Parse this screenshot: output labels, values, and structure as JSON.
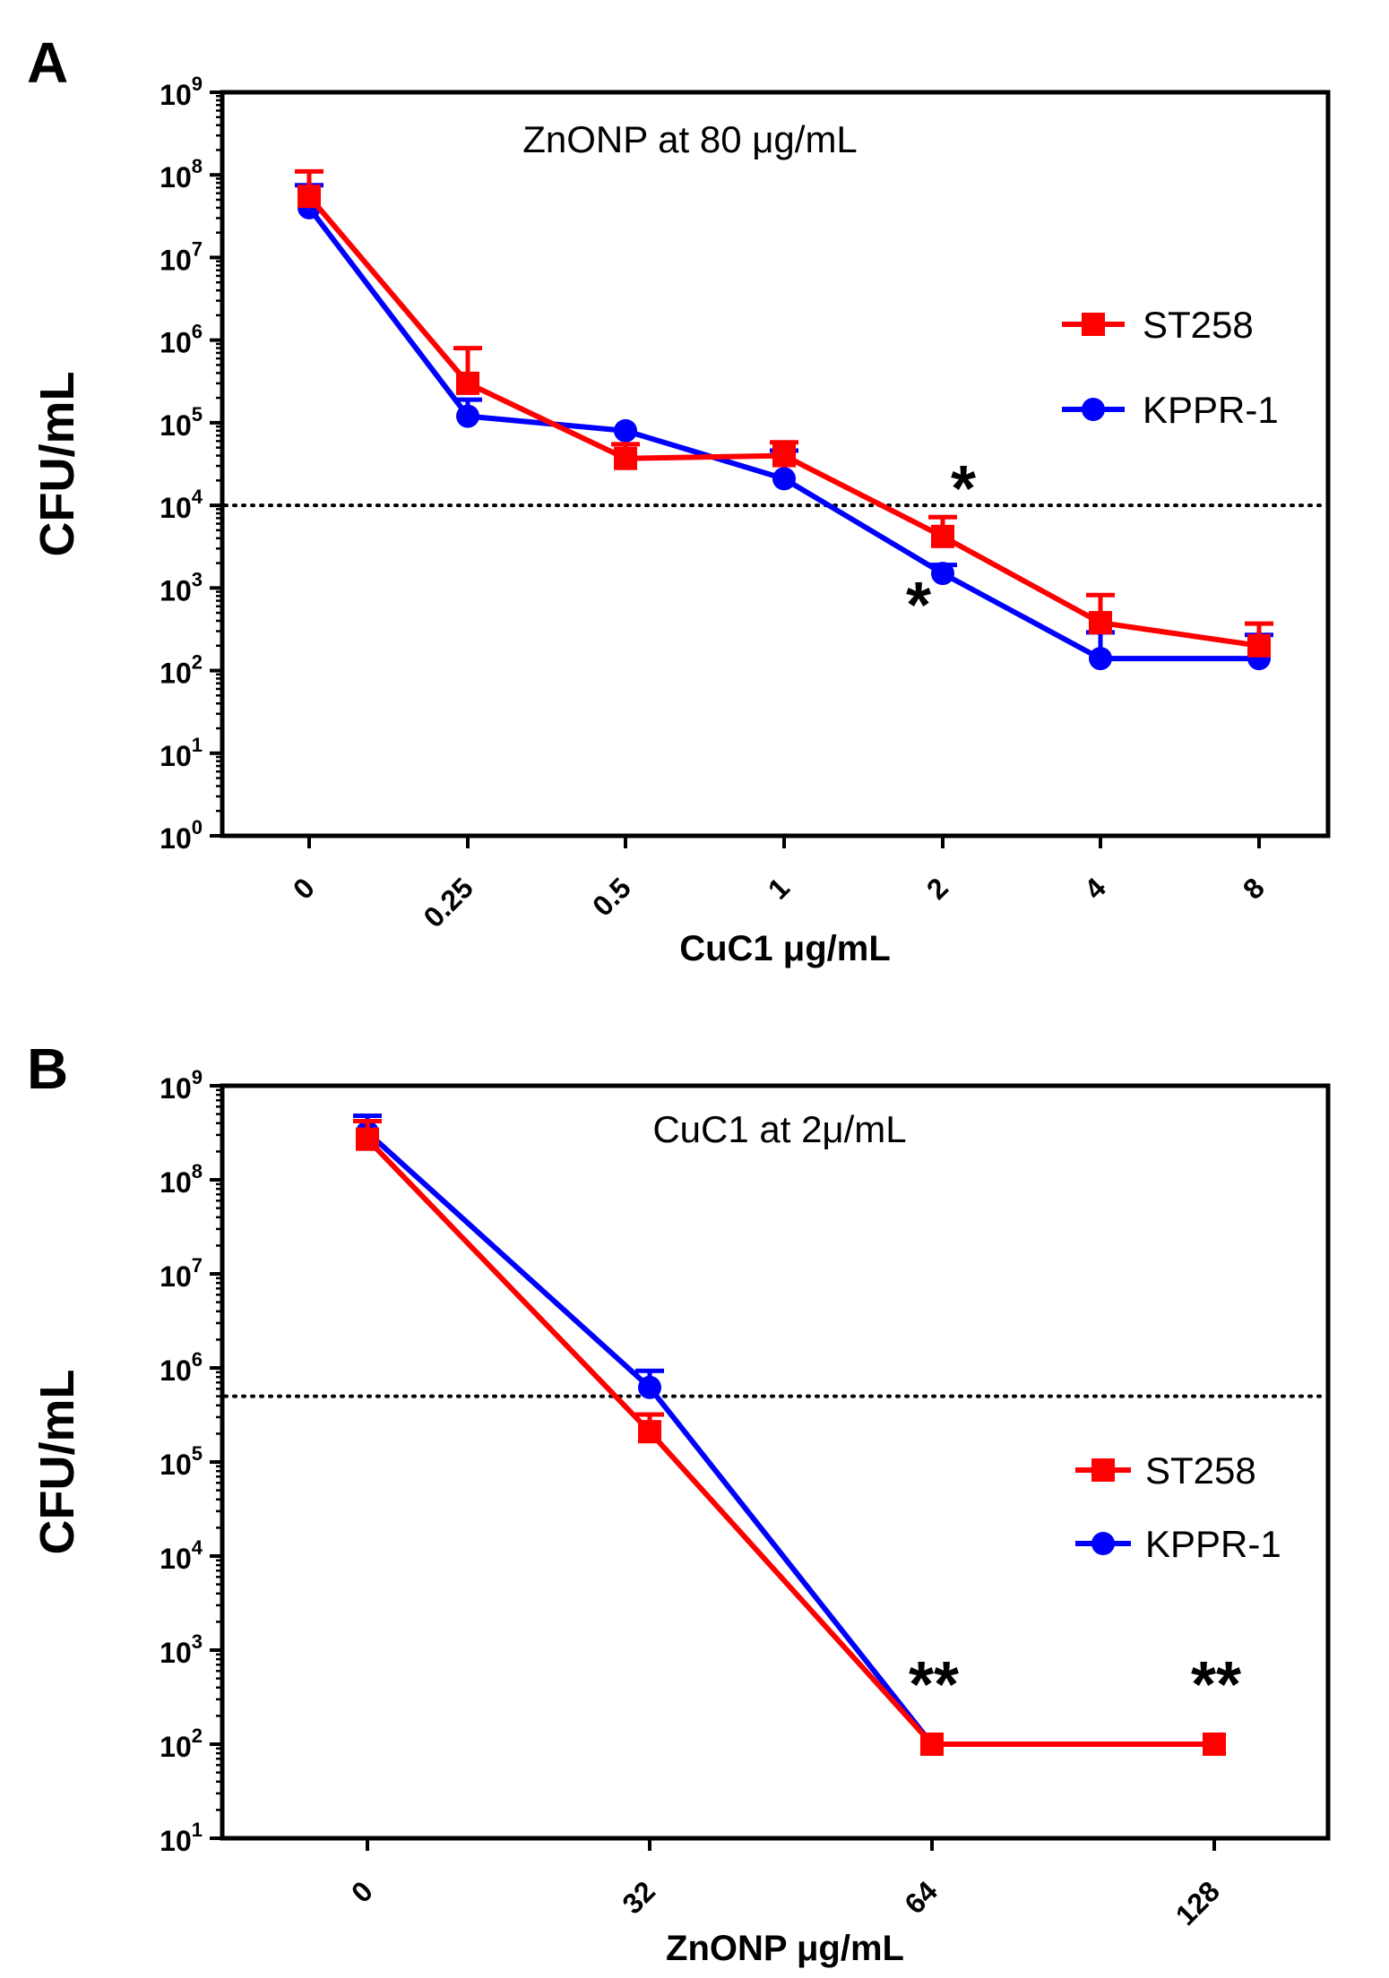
{
  "chart_data": [
    {
      "panel": "A",
      "type": "line",
      "yscale": "log",
      "title": "",
      "annotation": "ZnONP at 80 μg/mL",
      "xlabel": "CuC1 μg/mL",
      "ylabel": "CFU/mL",
      "categories": [
        "0",
        "0.25",
        "0.5",
        "1",
        "2",
        "4",
        "8"
      ],
      "ylim": [
        1,
        1000000000
      ],
      "ytick_exponents": [
        0,
        1,
        2,
        3,
        4,
        5,
        6,
        7,
        8,
        9
      ],
      "threshold": 10000,
      "series": [
        {
          "name": "ST258",
          "color": "#ff0000",
          "marker": "square",
          "values": [
            55000000,
            300000,
            37000,
            40000,
            4200,
            380,
            200
          ],
          "error_upper": [
            110000000,
            800000,
            55000,
            58000,
            7200,
            820,
            370
          ]
        },
        {
          "name": "KPPR-1",
          "color": "#0000ff",
          "marker": "circle",
          "values": [
            40000000,
            120000,
            80000,
            21000,
            1500,
            140,
            140
          ],
          "error_upper": [
            75000000,
            190000,
            80000,
            46000,
            1900,
            290,
            270
          ]
        }
      ],
      "significance": [
        {
          "category": "2",
          "series": "ST258",
          "label": "*"
        },
        {
          "category": "2",
          "series": "KPPR-1",
          "label": "*"
        }
      ],
      "legend": {
        "position": "right",
        "entries": [
          "ST258",
          "KPPR-1"
        ]
      }
    },
    {
      "panel": "B",
      "type": "line",
      "yscale": "log",
      "title": "",
      "annotation": "CuC1 at 2μ/mL",
      "xlabel": "ZnONP μg/mL",
      "ylabel": "CFU/mL",
      "categories": [
        "0",
        "32",
        "64",
        "128"
      ],
      "ylim": [
        10,
        1000000000
      ],
      "ytick_exponents": [
        1,
        2,
        3,
        4,
        5,
        6,
        7,
        8,
        9
      ],
      "threshold": 500000,
      "series": [
        {
          "name": "ST258",
          "color": "#ff0000",
          "marker": "square",
          "values": [
            270000000,
            210000,
            100,
            100
          ],
          "error_upper": [
            420000000,
            320000,
            100,
            100
          ]
        },
        {
          "name": "KPPR-1",
          "color": "#0000ff",
          "marker": "circle",
          "values": [
            320000000,
            620000,
            100,
            null
          ],
          "error_upper": [
            480000000,
            930000,
            100,
            null
          ]
        }
      ],
      "significance": [
        {
          "category": "64",
          "label": "**"
        },
        {
          "category": "128",
          "label": "**"
        }
      ],
      "legend": {
        "position": "right",
        "entries": [
          "ST258",
          "KPPR-1"
        ]
      }
    }
  ]
}
